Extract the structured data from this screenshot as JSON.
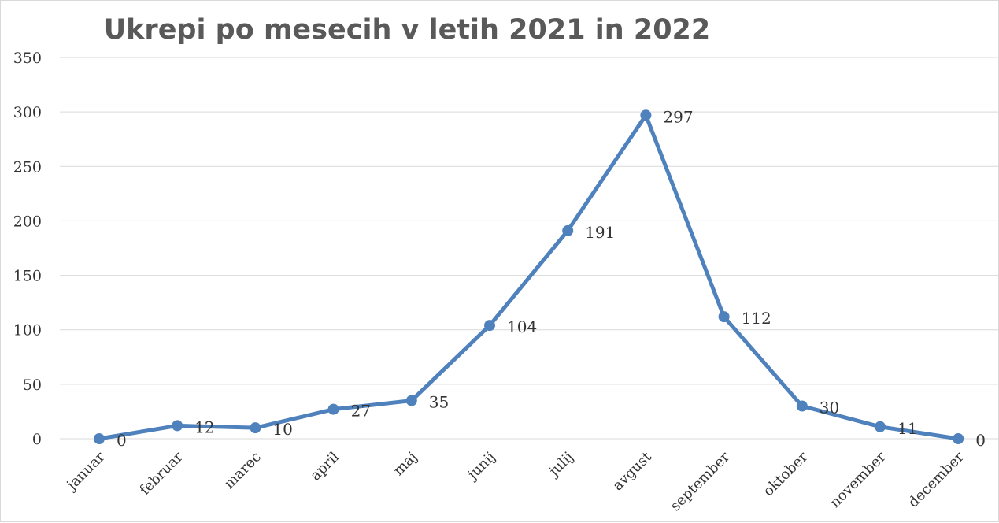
{
  "chart_data": {
    "type": "line",
    "title": "Ukrepi po mesecih v letih 2021 in 2022",
    "xlabel": "",
    "ylabel": "",
    "categories": [
      "januar",
      "februar",
      "marec",
      "april",
      "maj",
      "junij",
      "julij",
      "avgust",
      "september",
      "oktober",
      "november",
      "december"
    ],
    "series": [
      {
        "values": [
          0,
          12,
          10,
          27,
          35,
          104,
          191,
          297,
          112,
          30,
          11,
          0
        ],
        "color": "#4f81bd"
      }
    ],
    "yticks": [
      0,
      50,
      100,
      150,
      200,
      250,
      300,
      350
    ],
    "ylim": [
      0,
      350
    ],
    "grid": true,
    "legend": "none",
    "data_labels": true,
    "marker": "circle"
  }
}
